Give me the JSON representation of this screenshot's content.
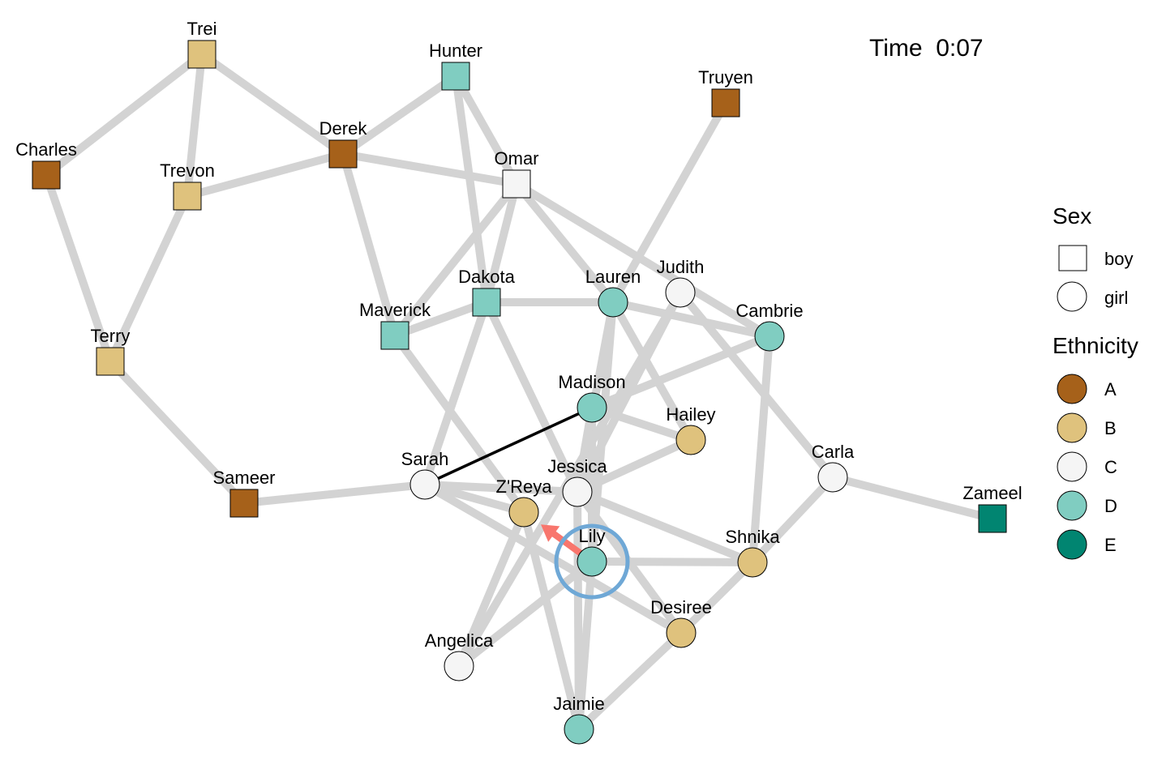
{
  "time": "Time  0:07",
  "legend": {
    "sex_title": "Sex",
    "sex_items": [
      {
        "label": "boy",
        "shape": "square"
      },
      {
        "label": "girl",
        "shape": "circle"
      }
    ],
    "ethnicity_title": "Ethnicity",
    "ethnicity_items": [
      {
        "label": "A",
        "color": "#A6611A"
      },
      {
        "label": "B",
        "color": "#DFC27D"
      },
      {
        "label": "C",
        "color": "#F5F5F5"
      },
      {
        "label": "D",
        "color": "#80CDC1"
      },
      {
        "label": "E",
        "color": "#018571"
      }
    ]
  },
  "colors": {
    "edge": "#D3D3D3",
    "highlight_edge": "#000000",
    "arrow": "#F8766D",
    "focus_ring": "#6FA8D6"
  },
  "nodes": [
    {
      "name": "Trei",
      "sex": "boy",
      "ethnicity": "B"
    },
    {
      "name": "Hunter",
      "sex": "boy",
      "ethnicity": "D"
    },
    {
      "name": "Truyen",
      "sex": "boy",
      "ethnicity": "A"
    },
    {
      "name": "Charles",
      "sex": "boy",
      "ethnicity": "A"
    },
    {
      "name": "Derek",
      "sex": "boy",
      "ethnicity": "A"
    },
    {
      "name": "Trevon",
      "sex": "boy",
      "ethnicity": "B"
    },
    {
      "name": "Omar",
      "sex": "boy",
      "ethnicity": "C"
    },
    {
      "name": "Dakota",
      "sex": "boy",
      "ethnicity": "D"
    },
    {
      "name": "Maverick",
      "sex": "boy",
      "ethnicity": "D"
    },
    {
      "name": "Lauren",
      "sex": "girl",
      "ethnicity": "D"
    },
    {
      "name": "Judith",
      "sex": "girl",
      "ethnicity": "C"
    },
    {
      "name": "Cambrie",
      "sex": "girl",
      "ethnicity": "D"
    },
    {
      "name": "Terry",
      "sex": "boy",
      "ethnicity": "B"
    },
    {
      "name": "Madison",
      "sex": "girl",
      "ethnicity": "D"
    },
    {
      "name": "Hailey",
      "sex": "girl",
      "ethnicity": "B"
    },
    {
      "name": "Sameer",
      "sex": "boy",
      "ethnicity": "A"
    },
    {
      "name": "Sarah",
      "sex": "girl",
      "ethnicity": "C"
    },
    {
      "name": "Jessica",
      "sex": "girl",
      "ethnicity": "C"
    },
    {
      "name": "Z'Reya",
      "sex": "girl",
      "ethnicity": "B"
    },
    {
      "name": "Carla",
      "sex": "girl",
      "ethnicity": "C"
    },
    {
      "name": "Zameel",
      "sex": "boy",
      "ethnicity": "E"
    },
    {
      "name": "Lily",
      "sex": "girl",
      "ethnicity": "D"
    },
    {
      "name": "Shnika",
      "sex": "girl",
      "ethnicity": "B"
    },
    {
      "name": "Desiree",
      "sex": "girl",
      "ethnicity": "B"
    },
    {
      "name": "Angelica",
      "sex": "girl",
      "ethnicity": "C"
    },
    {
      "name": "Jaimie",
      "sex": "girl",
      "ethnicity": "D"
    }
  ],
  "edges": [
    [
      "Trei",
      "Charles"
    ],
    [
      "Trei",
      "Trevon"
    ],
    [
      "Trei",
      "Derek"
    ],
    [
      "Charles",
      "Terry"
    ],
    [
      "Trevon",
      "Terry"
    ],
    [
      "Trevon",
      "Derek"
    ],
    [
      "Terry",
      "Sameer"
    ],
    [
      "Sameer",
      "Sarah"
    ],
    [
      "Derek",
      "Hunter"
    ],
    [
      "Derek",
      "Omar"
    ],
    [
      "Derek",
      "Maverick"
    ],
    [
      "Hunter",
      "Omar"
    ],
    [
      "Hunter",
      "Dakota"
    ],
    [
      "Omar",
      "Maverick"
    ],
    [
      "Omar",
      "Dakota"
    ],
    [
      "Omar",
      "Lauren"
    ],
    [
      "Omar",
      "Cambrie"
    ],
    [
      "Truyen",
      "Lauren"
    ],
    [
      "Maverick",
      "Dakota"
    ],
    [
      "Maverick",
      "Z'Reya"
    ],
    [
      "Dakota",
      "Lauren"
    ],
    [
      "Dakota",
      "Sarah"
    ],
    [
      "Dakota",
      "Jessica"
    ],
    [
      "Lauren",
      "Cambrie"
    ],
    [
      "Lauren",
      "Hailey"
    ],
    [
      "Lauren",
      "Lily"
    ],
    [
      "Lauren",
      "Jessica"
    ],
    [
      "Judith",
      "Carla"
    ],
    [
      "Judith",
      "Jessica"
    ],
    [
      "Judith",
      "Angelica"
    ],
    [
      "Cambrie",
      "Madison"
    ],
    [
      "Cambrie",
      "Shnika"
    ],
    [
      "Madison",
      "Hailey"
    ],
    [
      "Madison",
      "Lily"
    ],
    [
      "Madison",
      "Jessica"
    ],
    [
      "Hailey",
      "Jessica"
    ],
    [
      "Sarah",
      "Jessica"
    ],
    [
      "Sarah",
      "Z'Reya"
    ],
    [
      "Sarah",
      "Desiree"
    ],
    [
      "Jessica",
      "Shnika"
    ],
    [
      "Jessica",
      "Jaimie"
    ],
    [
      "Jessica",
      "Desiree"
    ],
    [
      "Z'Reya",
      "Angelica"
    ],
    [
      "Z'Reya",
      "Jaimie"
    ],
    [
      "Lily",
      "Shnika"
    ],
    [
      "Lily",
      "Jaimie"
    ],
    [
      "Lily",
      "Angelica"
    ],
    [
      "Carla",
      "Shnika"
    ],
    [
      "Carla",
      "Zameel"
    ],
    [
      "Shnika",
      "Desiree"
    ],
    [
      "Desiree",
      "Jaimie"
    ]
  ],
  "highlight_edge": [
    "Sarah",
    "Madison"
  ],
  "arrow": {
    "from": "Lily",
    "to": "Z'Reya"
  },
  "focus_node": "Lily"
}
